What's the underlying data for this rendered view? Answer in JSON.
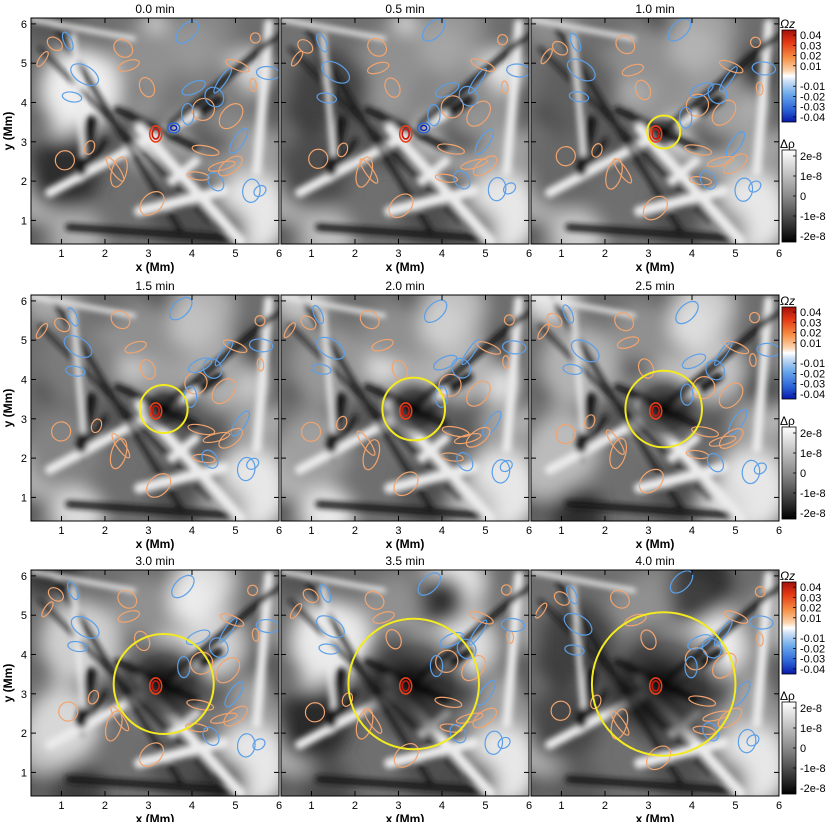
{
  "figure": {
    "panels": [
      {
        "title": "0.0 min",
        "circle_radius_mm": 0
      },
      {
        "title": "0.5 min",
        "circle_radius_mm": 0
      },
      {
        "title": "1.0 min",
        "circle_radius_mm": 0.38
      },
      {
        "title": "1.5 min",
        "circle_radius_mm": 0.55
      },
      {
        "title": "2.0 min",
        "circle_radius_mm": 0.72
      },
      {
        "title": "2.5 min",
        "circle_radius_mm": 0.88
      },
      {
        "title": "3.0 min",
        "circle_radius_mm": 1.15
      },
      {
        "title": "3.5 min",
        "circle_radius_mm": 1.5
      },
      {
        "title": "4.0 min",
        "circle_radius_mm": 1.65
      }
    ],
    "xlabel": "x (Mm)",
    "ylabel": "y (Mm)",
    "xticks": [
      "1",
      "2",
      "3",
      "4",
      "5",
      "6"
    ],
    "yticks": [
      "1",
      "2",
      "3",
      "4",
      "5",
      "6"
    ],
    "x_range": [
      0.3,
      6.0
    ],
    "y_range": [
      0.4,
      6.15
    ],
    "circle_center": {
      "x": 3.35,
      "y": 3.25
    },
    "circle_color": "#f3ea1f",
    "vorticity_colorbar": {
      "label": "Ωz",
      "ticks": [
        "0.04",
        "0.03",
        "0.02",
        "0.01",
        "-0.01",
        "-0.02",
        "-0.03",
        "-0.04"
      ],
      "colors": [
        "#c81e12",
        "#ea4a1c",
        "#f58b43",
        "#f8bd8e",
        "#ffffff",
        "#a9cbee",
        "#5da0e6",
        "#2a66d6",
        "#0a22b5"
      ]
    },
    "density_colorbar": {
      "label": "Δρ",
      "ticks": [
        "2e-8",
        "1e-8",
        "0",
        "-1e-8",
        "-2e-8"
      ]
    },
    "contour_colors": {
      "positive": "#f2a46e",
      "negative": "#5b9fe8"
    }
  }
}
